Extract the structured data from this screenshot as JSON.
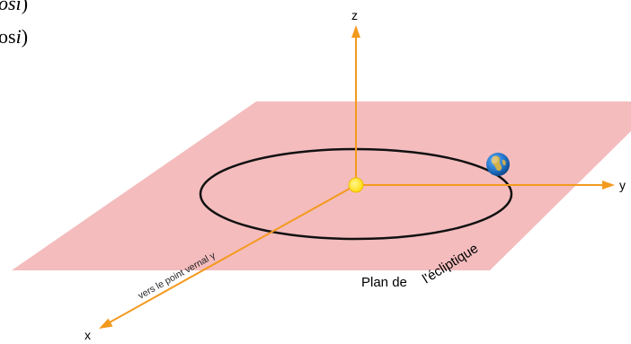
{
  "top_text": {
    "line1_italic": "osi",
    "line1_tail": ")",
    "line2_normal": "os",
    "line2_italic": "i",
    "line2_tail": ")"
  },
  "axes": {
    "z": "z",
    "y": "y",
    "x": "x"
  },
  "plane_label": {
    "part1": "Plan de",
    "part2": "l'écliptique"
  },
  "vernal_label": "vers le point vernal γ",
  "icons": {
    "sun": "sun-icon",
    "earth": "earth-icon"
  },
  "colors": {
    "plane": "#f4bcbd",
    "axis": "#f39a1e",
    "orbit": "#111111",
    "sun": "#ffe600",
    "earth_ocean": "#1f6fc4",
    "earth_land": "#e0b43c"
  }
}
